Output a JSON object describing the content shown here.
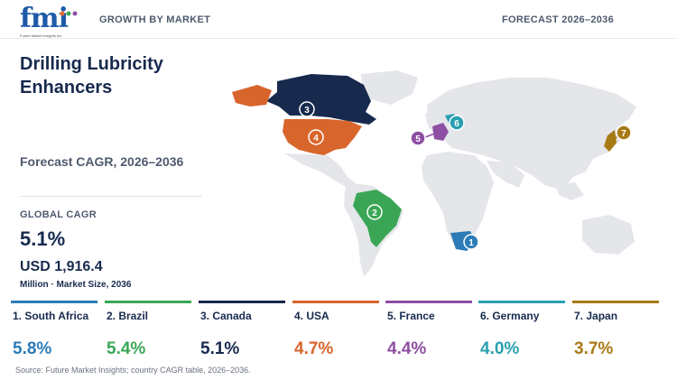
{
  "header": {
    "logo_text": "fmi",
    "logo_sub": "Future Market Insights Inc.",
    "left_label": "GROWTH BY MARKET",
    "right_label": "FORECAST 2026–2036"
  },
  "title": "Drilling Lubricity Enhancers",
  "forecast_label": "Forecast CAGR, 2026–2036",
  "global": {
    "label": "GLOBAL CAGR",
    "cagr": "5.1%",
    "market_size": "USD 1,916.4",
    "market_size_sub": "Million · Market Size, 2036"
  },
  "countries": [
    {
      "rank": "1",
      "name": "1. South Africa",
      "cagr": "5.8%",
      "color": "#2c7bb6"
    },
    {
      "rank": "2",
      "name": "2. Brazil",
      "cagr": "5.4%",
      "color": "#3aa655"
    },
    {
      "rank": "3",
      "name": "3. Canada",
      "cagr": "5.1%",
      "color": "#172a4e"
    },
    {
      "rank": "4",
      "name": "4. USA",
      "cagr": "4.7%",
      "color": "#d8662c"
    },
    {
      "rank": "5",
      "name": "5. France",
      "cagr": "4.4%",
      "color": "#8e4ea3"
    },
    {
      "rank": "6",
      "name": "6. Germany",
      "cagr": "4.0%",
      "color": "#2a9fb0"
    },
    {
      "rank": "7",
      "name": "7. Japan",
      "cagr": "3.7%",
      "color": "#a87a15"
    }
  ],
  "source": "Source: Future Market Insights; country CAGR table, 2026–2036."
}
